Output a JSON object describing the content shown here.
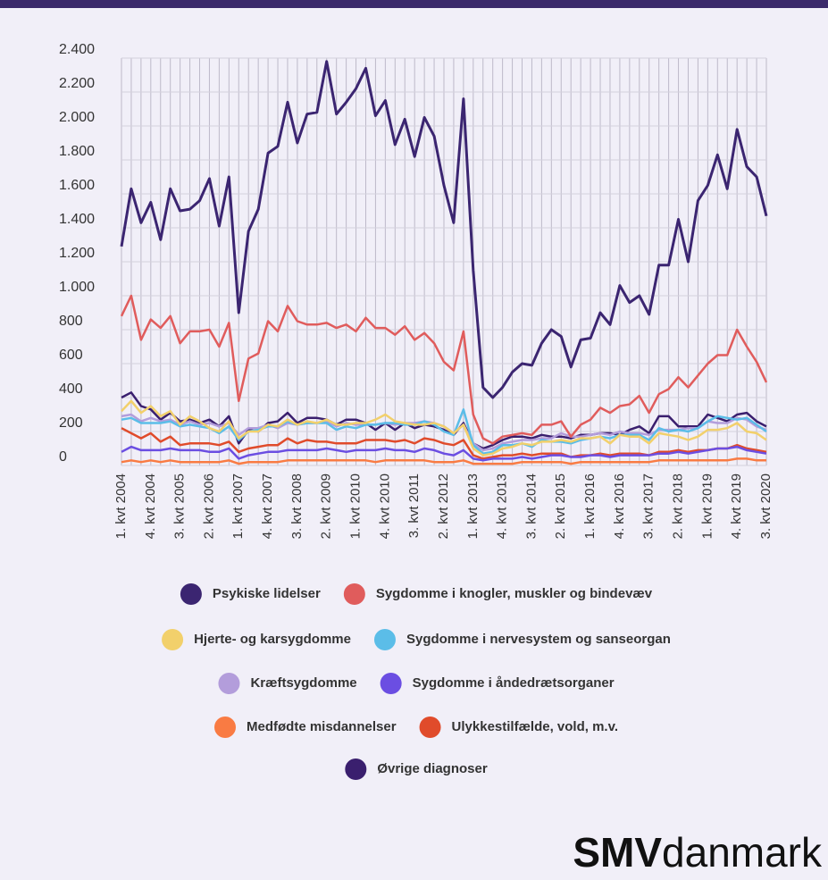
{
  "chart_data": {
    "type": "line",
    "categories": [
      "1. kvt 2004",
      null,
      null,
      "4. kvt 2004",
      null,
      null,
      "3. kvt 2005",
      null,
      null,
      "2. kvt 2006",
      null,
      null,
      "1. kvt 2007",
      null,
      null,
      "4. kvt 2007",
      null,
      null,
      "3. kvt 2008",
      null,
      null,
      "2. kvt 2009",
      null,
      null,
      "1. kvt 2010",
      null,
      null,
      "4. kvt 2010",
      null,
      null,
      "3. kvt 2011",
      null,
      null,
      "2. kvt 2012",
      null,
      null,
      "1. kvt 2013",
      null,
      null,
      "4. kvt 2013",
      null,
      null,
      "3. kvt 2014",
      null,
      null,
      "2. kvt 2015",
      null,
      null,
      "1. kvt 2016",
      null,
      null,
      "4. kvt 2016",
      null,
      null,
      "3. kvt 2017",
      null,
      null,
      "2. kvt 2018",
      null,
      null,
      "1. kvt 2019",
      null,
      null,
      "4. kvt 2019",
      null,
      null,
      "3. kvt 2020"
    ],
    "series": [
      {
        "name": "Psykiske lidelser",
        "color": "#3b2571",
        "values": [
          1290,
          1630,
          1430,
          1550,
          1330,
          1630,
          1500,
          1510,
          1560,
          1690,
          1410,
          1700,
          900,
          1380,
          1510,
          1840,
          1880,
          2140,
          1900,
          2070,
          2080,
          2380,
          2070,
          2140,
          2220,
          2340,
          2060,
          2150,
          1890,
          2040,
          1820,
          2050,
          1940,
          1650,
          1430,
          2160,
          1150,
          460,
          400,
          460,
          550,
          600,
          590,
          720,
          800,
          760,
          580,
          740,
          750,
          900,
          830,
          1060,
          960,
          1000,
          890,
          1180,
          1180,
          1450,
          1200,
          1560,
          1650,
          1830,
          1630,
          1980,
          1760,
          1700,
          1470
        ]
      },
      {
        "name": "Sygdomme i knogler, muskler og bindevæv",
        "color": "#e05c5c",
        "values": [
          880,
          1000,
          740,
          860,
          810,
          880,
          720,
          790,
          790,
          800,
          700,
          840,
          380,
          630,
          660,
          850,
          790,
          940,
          850,
          830,
          830,
          840,
          810,
          830,
          790,
          870,
          810,
          810,
          770,
          820,
          740,
          780,
          720,
          610,
          560,
          790,
          300,
          160,
          130,
          170,
          180,
          190,
          180,
          240,
          240,
          260,
          170,
          240,
          270,
          340,
          310,
          350,
          360,
          410,
          310,
          420,
          450,
          520,
          460,
          530,
          600,
          650,
          650,
          800,
          700,
          610,
          490
        ]
      },
      {
        "name": "Hjerte- og karsygdomme",
        "color": "#f2d06b",
        "values": [
          320,
          380,
          310,
          350,
          290,
          320,
          240,
          290,
          260,
          220,
          200,
          260,
          160,
          200,
          200,
          240,
          230,
          270,
          240,
          260,
          250,
          270,
          240,
          240,
          250,
          250,
          270,
          300,
          260,
          250,
          240,
          240,
          250,
          230,
          190,
          240,
          100,
          60,
          70,
          100,
          110,
          130,
          120,
          140,
          140,
          150,
          140,
          160,
          160,
          170,
          130,
          180,
          170,
          170,
          130,
          190,
          180,
          170,
          150,
          170,
          210,
          210,
          220,
          250,
          200,
          190,
          150
        ]
      },
      {
        "name": "Sygdomme i nervesystem og sanseorgan",
        "color": "#5bbde8",
        "values": [
          270,
          280,
          250,
          250,
          250,
          260,
          230,
          240,
          230,
          220,
          190,
          230,
          150,
          200,
          210,
          230,
          230,
          260,
          240,
          250,
          250,
          250,
          210,
          230,
          220,
          240,
          240,
          250,
          250,
          240,
          240,
          260,
          240,
          200,
          180,
          330,
          120,
          70,
          80,
          120,
          120,
          130,
          110,
          150,
          140,
          140,
          130,
          150,
          160,
          170,
          160,
          180,
          180,
          180,
          150,
          220,
          200,
          210,
          200,
          220,
          260,
          290,
          280,
          270,
          280,
          240,
          200
        ]
      },
      {
        "name": "Kræftsygdomme",
        "color": "#b39ddb",
        "values": [
          290,
          300,
          260,
          280,
          260,
          270,
          240,
          260,
          240,
          250,
          230,
          250,
          180,
          220,
          220,
          240,
          220,
          250,
          240,
          250,
          250,
          260,
          230,
          250,
          240,
          240,
          240,
          250,
          240,
          250,
          250,
          260,
          250,
          230,
          190,
          240,
          130,
          90,
          100,
          130,
          140,
          150,
          150,
          160,
          160,
          190,
          170,
          170,
          180,
          190,
          180,
          200,
          190,
          190,
          180,
          210,
          210,
          210,
          220,
          220,
          260,
          250,
          250,
          280,
          270,
          230,
          210
        ]
      },
      {
        "name": "Sygdomme i åndedrætsorganer",
        "color": "#6b4ee2",
        "values": [
          80,
          110,
          90,
          90,
          90,
          100,
          90,
          90,
          90,
          80,
          80,
          100,
          40,
          60,
          70,
          80,
          80,
          90,
          90,
          90,
          90,
          100,
          90,
          80,
          90,
          90,
          90,
          100,
          90,
          90,
          80,
          100,
          90,
          70,
          60,
          90,
          40,
          30,
          40,
          40,
          40,
          50,
          40,
          50,
          60,
          60,
          50,
          50,
          60,
          60,
          50,
          60,
          60,
          60,
          60,
          70,
          70,
          80,
          70,
          80,
          90,
          100,
          100,
          110,
          90,
          80,
          70
        ]
      },
      {
        "name": "Medfødte misdannelser",
        "color": "#f97b43",
        "values": [
          20,
          30,
          20,
          30,
          20,
          30,
          20,
          20,
          20,
          20,
          20,
          30,
          10,
          20,
          20,
          20,
          20,
          30,
          30,
          30,
          30,
          30,
          30,
          30,
          30,
          30,
          20,
          30,
          30,
          30,
          30,
          30,
          20,
          20,
          20,
          30,
          10,
          10,
          10,
          10,
          10,
          20,
          20,
          20,
          20,
          20,
          10,
          20,
          20,
          20,
          20,
          20,
          20,
          20,
          20,
          30,
          30,
          30,
          30,
          30,
          30,
          30,
          30,
          40,
          40,
          30,
          30
        ]
      },
      {
        "name": "Ulykkestilfælde, vold, m.v.",
        "color": "#e04b2b",
        "values": [
          220,
          190,
          160,
          190,
          140,
          170,
          120,
          130,
          130,
          130,
          120,
          140,
          80,
          100,
          110,
          120,
          120,
          160,
          130,
          150,
          140,
          140,
          130,
          130,
          130,
          150,
          150,
          150,
          140,
          150,
          130,
          160,
          150,
          130,
          120,
          150,
          60,
          40,
          50,
          60,
          60,
          70,
          60,
          70,
          70,
          70,
          50,
          60,
          60,
          70,
          60,
          70,
          70,
          70,
          60,
          80,
          80,
          90,
          80,
          90,
          90,
          100,
          100,
          120,
          100,
          90,
          80
        ]
      },
      {
        "name": "Øvrige diagnoser",
        "color": "#3a1f6e",
        "values": [
          400,
          430,
          350,
          330,
          270,
          310,
          260,
          270,
          250,
          270,
          230,
          290,
          130,
          210,
          200,
          250,
          260,
          310,
          250,
          280,
          280,
          270,
          240,
          270,
          270,
          250,
          210,
          250,
          210,
          250,
          220,
          240,
          230,
          210,
          180,
          250,
          130,
          100,
          120,
          150,
          170,
          170,
          160,
          180,
          170,
          170,
          160,
          180,
          180,
          190,
          190,
          180,
          210,
          230,
          190,
          290,
          290,
          230,
          230,
          230,
          300,
          280,
          260,
          300,
          310,
          260,
          230
        ]
      }
    ],
    "ylim": [
      0,
      2400
    ],
    "yticks": [
      0,
      200,
      400,
      600,
      800,
      {
        "value": 1000,
        "label": "1.000"
      },
      {
        "value": 1200,
        "label": "1.200"
      },
      {
        "value": 1400,
        "label": "1.400"
      },
      {
        "value": 1600,
        "label": "1.600"
      },
      {
        "value": 1800,
        "label": "1.800"
      },
      {
        "value": 2000,
        "label": "2.000"
      },
      {
        "value": 2200,
        "label": "2.200"
      },
      {
        "value": 2400,
        "label": "2.400"
      }
    ],
    "grid": true,
    "legend": "bottom"
  },
  "brand": {
    "bold": "SMV",
    "light": "danmark"
  }
}
